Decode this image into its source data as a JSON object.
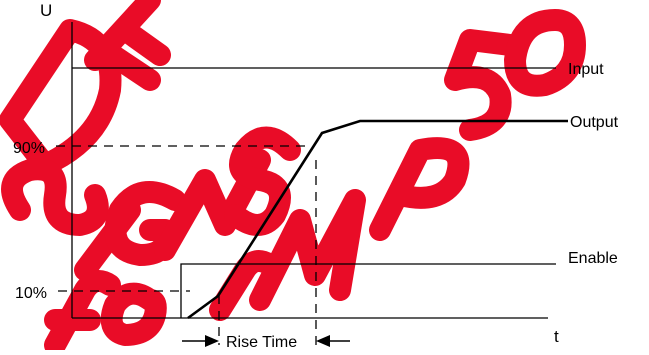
{
  "diagram": {
    "axis_labels": {
      "y": "U",
      "x": "t"
    },
    "levels": {
      "upper": "90%",
      "lower": "10%"
    },
    "signals": {
      "input": "Input",
      "output": "Output",
      "enable": "Enable"
    },
    "interval": {
      "label": "Rise Time"
    },
    "watermark": {
      "text": "DEDESIGNS for MP50",
      "color": "#e8001c"
    },
    "colors": {
      "line": "#000000",
      "background": "#ffffff"
    }
  }
}
